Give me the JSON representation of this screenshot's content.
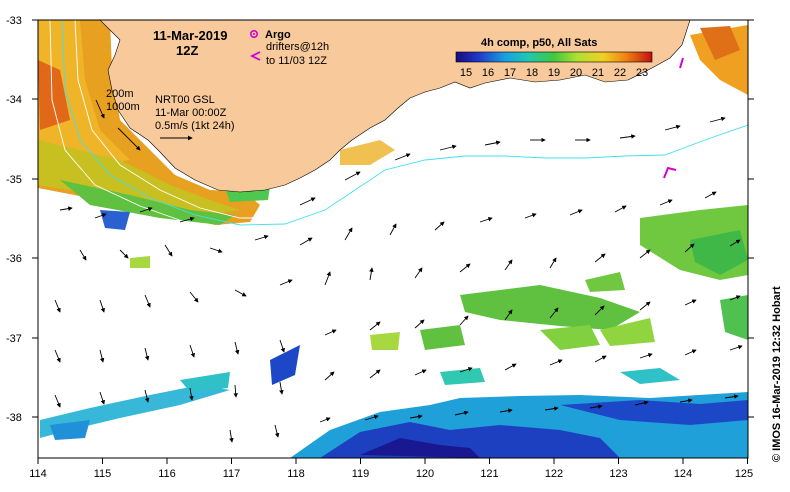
{
  "title": {
    "date": "11-Mar-2019",
    "time": "12Z"
  },
  "legend": {
    "argo_label": "Argo",
    "drifters_label": "drifters@12h",
    "drifters_range": "to 11/03 12Z",
    "isobath_200": "200m",
    "isobath_1000": "1000m",
    "current_source": "NRT00 GSL",
    "current_time": "11-Mar 00:00Z",
    "vector_scale": "0.5m/s (1kt 24h)"
  },
  "colorbar": {
    "title": "4h comp, p50, All Sats",
    "ticks": [
      "15",
      "16",
      "17",
      "18",
      "19",
      "20",
      "21",
      "22",
      "23"
    ],
    "min": 14.5,
    "max": 23.5
  },
  "axes": {
    "lon": [
      "114",
      "115",
      "116",
      "117",
      "118",
      "119",
      "120",
      "121",
      "122",
      "123",
      "124",
      "125"
    ],
    "lat": [
      "-33",
      "-34",
      "-35",
      "-36",
      "-37",
      "-38"
    ]
  },
  "credit": "© IMOS 16-Mar-2019 12:32 Hobart",
  "colors": {
    "land": "#f8c99a",
    "arrow": "#000000",
    "isobath": "#ffffff",
    "drifter": "#d400d4"
  }
}
